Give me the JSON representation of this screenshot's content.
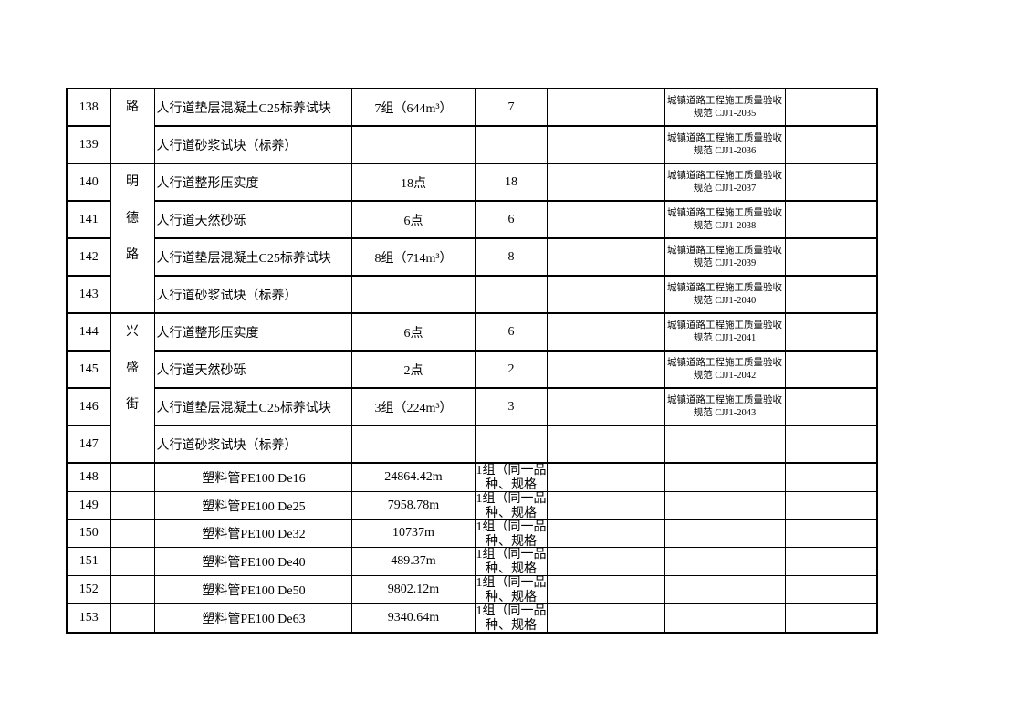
{
  "rows": [
    {
      "no": "138",
      "name": "人行道垫层混凝土C25标养试块",
      "qty": "7组（644m³）",
      "count": "7",
      "std": "城镇道路工程施工质量验收规范 CJJ1-2035"
    },
    {
      "no": "139",
      "name": "人行道砂浆试块（标养）",
      "qty": "",
      "count": "",
      "std": "城镇道路工程施工质量验收规范 CJJ1-2036"
    },
    {
      "no": "140",
      "name": "人行道整形压实度",
      "qty": "18点",
      "count": "18",
      "std": "城镇道路工程施工质量验收规范 CJJ1-2037"
    },
    {
      "no": "141",
      "name": "人行道天然砂砾",
      "qty": "6点",
      "count": "6",
      "std": "城镇道路工程施工质量验收规范 CJJ1-2038"
    },
    {
      "no": "142",
      "name": "人行道垫层混凝土C25标养试块",
      "qty": "8组（714m³）",
      "count": "8",
      "std": "城镇道路工程施工质量验收规范 CJJ1-2039"
    },
    {
      "no": "143",
      "name": "人行道砂浆试块（标养）",
      "qty": "",
      "count": "",
      "std": "城镇道路工程施工质量验收规范 CJJ1-2040"
    },
    {
      "no": "144",
      "name": "人行道整形压实度",
      "qty": "6点",
      "count": "6",
      "std": "城镇道路工程施工质量验收规范 CJJ1-2041"
    },
    {
      "no": "145",
      "name": "人行道天然砂砾",
      "qty": "2点",
      "count": "2",
      "std": "城镇道路工程施工质量验收规范 CJJ1-2042"
    },
    {
      "no": "146",
      "name": "人行道垫层混凝土C25标养试块",
      "qty": "3组（224m³）",
      "count": "3",
      "std": "城镇道路工程施工质量验收规范 CJJ1-2043"
    },
    {
      "no": "147",
      "name": "人行道砂浆试块（标养）",
      "qty": "",
      "count": "",
      "std": ""
    },
    {
      "no": "148",
      "name": "塑料管PE100 De16",
      "qty": "24864.42m",
      "count": "1组（同一品种、规格",
      "std": ""
    },
    {
      "no": "149",
      "name": "塑料管PE100 De25",
      "qty": "7958.78m",
      "count": "1组（同一品种、规格",
      "std": ""
    },
    {
      "no": "150",
      "name": "塑料管PE100 De32",
      "qty": "10737m",
      "count": "1组（同一品种、规格",
      "std": ""
    },
    {
      "no": "151",
      "name": "塑料管PE100 De40",
      "qty": "489.37m",
      "count": "1组（同一品种、规格",
      "std": ""
    },
    {
      "no": "152",
      "name": "塑料管PE100 De50",
      "qty": "9802.12m",
      "count": "1组（同一品种、规格",
      "std": ""
    },
    {
      "no": "153",
      "name": "塑料管PE100 De63",
      "qty": "9340.64m",
      "count": "1组（同一品种、规格",
      "std": ""
    }
  ],
  "groups": [
    {
      "chars": [
        "路"
      ]
    },
    {
      "chars": [
        "明",
        "德",
        "路"
      ]
    },
    {
      "chars": [
        "兴",
        "盛",
        "街"
      ]
    }
  ]
}
